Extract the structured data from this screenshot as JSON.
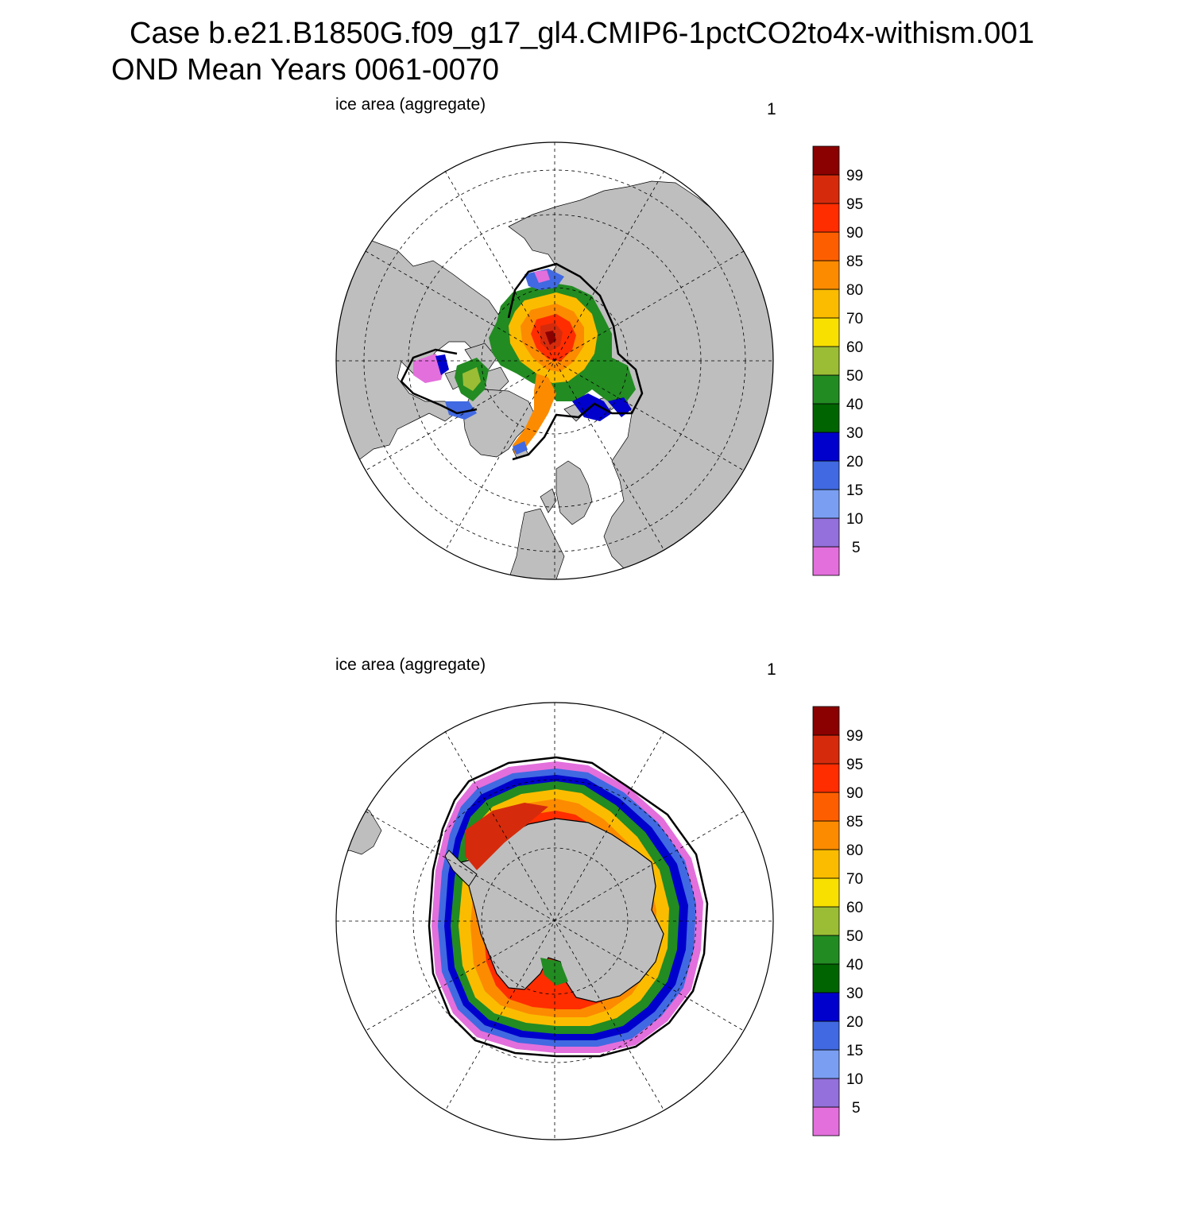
{
  "title": {
    "line1": "Case b.e21.B1850G.f09_g17_gl4.CMIP6-1pctCO2to4x-withism.001",
    "line2": "OND Mean   Years 0061-0070"
  },
  "colors": {
    "land": "#bebebe",
    "ocean": "#ffffff",
    "edge_contour": "#000000"
  },
  "colorbar": {
    "tick_labels": [
      "99",
      "95",
      "90",
      "85",
      "80",
      "70",
      "60",
      "50",
      "40",
      "30",
      "20",
      "15",
      "10",
      "5"
    ],
    "colors": [
      "#e36fdc",
      "#9370db",
      "#7a9ef2",
      "#4169e1",
      "#0000cd",
      "#006400",
      "#228b22",
      "#9bbd35",
      "#f8e100",
      "#fbbc00",
      "#fc8b00",
      "#fd5f00",
      "#ff2d00",
      "#d52b0c",
      "#8b0000"
    ]
  },
  "panels": [
    {
      "id": "north",
      "left_label": "ice area  (aggregate)",
      "right_label": "1",
      "projection": "north polar stereographic"
    },
    {
      "id": "south",
      "left_label": "ice area  (aggregate)",
      "right_label": "1",
      "projection": "south polar stereographic"
    }
  ]
}
